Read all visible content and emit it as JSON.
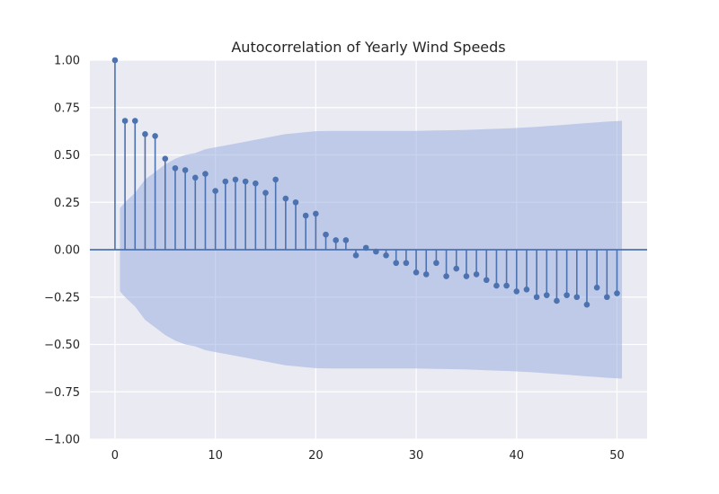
{
  "chart_data": {
    "type": "stem",
    "title": "Autocorrelation of Yearly Wind Speeds",
    "xlabel": "",
    "ylabel": "",
    "xlim": [
      -2.5,
      53
    ],
    "ylim": [
      -1.0,
      1.0
    ],
    "xticks": [
      0,
      10,
      20,
      30,
      40,
      50
    ],
    "xtick_labels": [
      "0",
      "10",
      "20",
      "30",
      "40",
      "50"
    ],
    "yticks": [
      1.0,
      0.75,
      0.5,
      0.25,
      0.0,
      -0.25,
      -0.5,
      -0.75,
      -1.0
    ],
    "ytick_labels": [
      "1.00",
      "0.75",
      "0.50",
      "0.25",
      "0.00",
      "−0.25",
      "−0.50",
      "−0.75",
      "−1.00"
    ],
    "grid": true,
    "lags": [
      0,
      1,
      2,
      3,
      4,
      5,
      6,
      7,
      8,
      9,
      10,
      11,
      12,
      13,
      14,
      15,
      16,
      17,
      18,
      19,
      20,
      21,
      22,
      23,
      24,
      25,
      26,
      27,
      28,
      29,
      30,
      31,
      32,
      33,
      34,
      35,
      36,
      37,
      38,
      39,
      40,
      41,
      42,
      43,
      44,
      45,
      46,
      47,
      48,
      49,
      50
    ],
    "values": [
      1.0,
      0.68,
      0.68,
      0.61,
      0.6,
      0.48,
      0.43,
      0.42,
      0.38,
      0.4,
      0.31,
      0.36,
      0.37,
      0.36,
      0.35,
      0.3,
      0.37,
      0.27,
      0.25,
      0.18,
      0.19,
      0.08,
      0.05,
      0.05,
      -0.03,
      0.01,
      -0.01,
      -0.03,
      -0.07,
      -0.07,
      -0.12,
      -0.13,
      -0.07,
      -0.14,
      -0.1,
      -0.14,
      -0.13,
      -0.16,
      -0.19,
      -0.19,
      -0.22,
      -0.21,
      -0.25,
      -0.24,
      -0.27,
      -0.24,
      -0.25,
      -0.29,
      -0.2,
      -0.25,
      -0.23
    ],
    "confidence_band": {
      "lags": [
        0.5,
        1,
        2,
        3,
        4,
        5,
        6,
        7,
        8,
        9,
        10,
        11,
        12,
        13,
        14,
        15,
        16,
        17,
        18,
        19,
        20,
        21,
        22,
        23,
        24,
        25,
        26,
        27,
        28,
        29,
        30,
        31,
        32,
        33,
        34,
        35,
        36,
        37,
        38,
        39,
        40,
        41,
        42,
        43,
        44,
        45,
        46,
        47,
        48,
        49,
        50.5
      ],
      "upper": [
        0.22,
        0.25,
        0.3,
        0.37,
        0.41,
        0.45,
        0.48,
        0.5,
        0.51,
        0.53,
        0.54,
        0.55,
        0.56,
        0.57,
        0.58,
        0.59,
        0.6,
        0.61,
        0.615,
        0.62,
        0.625,
        0.626,
        0.627,
        0.627,
        0.627,
        0.627,
        0.627,
        0.627,
        0.627,
        0.627,
        0.627,
        0.628,
        0.629,
        0.63,
        0.631,
        0.632,
        0.634,
        0.636,
        0.638,
        0.64,
        0.642,
        0.645,
        0.648,
        0.652,
        0.656,
        0.66,
        0.664,
        0.668,
        0.672,
        0.676,
        0.68
      ],
      "lower": [
        -0.22,
        -0.25,
        -0.3,
        -0.37,
        -0.41,
        -0.45,
        -0.48,
        -0.5,
        -0.51,
        -0.53,
        -0.54,
        -0.55,
        -0.56,
        -0.57,
        -0.58,
        -0.59,
        -0.6,
        -0.61,
        -0.615,
        -0.62,
        -0.625,
        -0.626,
        -0.627,
        -0.627,
        -0.627,
        -0.627,
        -0.627,
        -0.627,
        -0.627,
        -0.627,
        -0.627,
        -0.628,
        -0.629,
        -0.63,
        -0.631,
        -0.632,
        -0.634,
        -0.636,
        -0.638,
        -0.64,
        -0.642,
        -0.645,
        -0.648,
        -0.652,
        -0.656,
        -0.66,
        -0.664,
        -0.668,
        -0.672,
        -0.676,
        -0.68
      ]
    },
    "colors": {
      "stem": "#4c72b0",
      "band": "#9aaee0",
      "axes_bg": "#eaeaf2",
      "grid": "#ffffff",
      "zero_line": "#4c72b0",
      "text": "#262626"
    }
  }
}
